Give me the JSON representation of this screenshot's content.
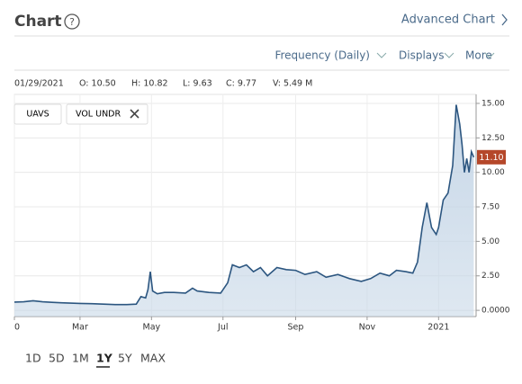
{
  "header": {
    "title": "Chart",
    "help": "?",
    "advanced": "Advanced Chart"
  },
  "toolbar": {
    "frequency": "Frequency (Daily)",
    "displays": "Displays",
    "more": "More"
  },
  "info": [
    "01/29/2021",
    "O: 10.50",
    "H: 10.82",
    "L: 9.63",
    "C: 9.77",
    "V: 5.49 M"
  ],
  "legend": [
    "UAVS",
    "VOL UNDR"
  ],
  "ranges": [
    "1D",
    "5D",
    "1M",
    "1Y",
    "5Y",
    "MAX"
  ],
  "active_range": "1Y",
  "chart_data": {
    "type": "area",
    "color": "#2c5680",
    "fill": "#c4d5e6",
    "series": [
      {
        "name": "UAVS",
        "color": "#2c5680",
        "x": [
          4,
          12,
          20,
          28,
          36,
          44,
          52,
          60,
          70,
          80,
          90,
          100,
          108,
          112,
          116,
          118,
          120,
          122,
          126,
          132,
          140,
          150,
          156,
          160,
          170,
          180,
          186,
          190,
          196,
          202,
          208,
          214,
          220,
          228,
          236,
          244,
          252,
          262,
          270,
          280,
          290,
          300,
          308,
          316,
          324,
          330,
          338,
          344,
          348,
          352,
          356,
          360,
          364,
          366,
          370,
          374,
          378,
          381,
          384,
          386,
          388,
          390,
          392,
          394,
          396
        ],
        "values": [
          0.6,
          0.62,
          0.7,
          0.62,
          0.58,
          0.55,
          0.52,
          0.5,
          0.48,
          0.45,
          0.42,
          0.42,
          0.45,
          1.0,
          0.9,
          1.5,
          2.8,
          1.4,
          1.2,
          1.3,
          1.3,
          1.25,
          1.6,
          1.4,
          1.3,
          1.25,
          2.0,
          3.3,
          3.1,
          3.3,
          2.8,
          3.1,
          2.5,
          3.1,
          2.95,
          2.9,
          2.6,
          2.8,
          2.4,
          2.6,
          2.3,
          2.1,
          2.3,
          2.7,
          2.5,
          2.9,
          2.8,
          2.7,
          3.5,
          6.0,
          7.8,
          6.0,
          5.5,
          6.0,
          8.0,
          8.5,
          10.5,
          14.9,
          13.5,
          12.0,
          10.0,
          11.0,
          10.0,
          11.5,
          11.1
        ]
      }
    ],
    "current_price": {
      "value": 11.1,
      "label": "11.10"
    },
    "xlim": [
      4,
      398
    ],
    "xticks": [
      {
        "value": 4,
        "label": "0"
      },
      {
        "value": 60,
        "label": "Mar"
      },
      {
        "value": 121,
        "label": "May"
      },
      {
        "value": 182,
        "label": "Jul"
      },
      {
        "value": 244,
        "label": "Sep"
      },
      {
        "value": 305,
        "label": "Nov"
      },
      {
        "value": 366,
        "label": "2021"
      }
    ],
    "ylim": [
      -0.45,
      15.65
    ],
    "yticks": [
      {
        "value": 0,
        "label": "0.0000"
      },
      {
        "value": 2.5,
        "label": "2.50"
      },
      {
        "value": 5,
        "label": "5.00"
      },
      {
        "value": 7.5,
        "label": "7.50"
      },
      {
        "value": 10,
        "label": "10.00"
      },
      {
        "value": 12.5,
        "label": "12.50"
      },
      {
        "value": 15,
        "label": "15.00"
      }
    ],
    "grid": true
  }
}
